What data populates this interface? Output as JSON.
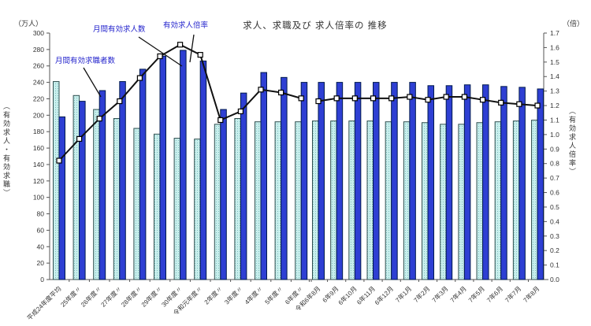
{
  "chart": {
    "title": "求人、求職及び 求人倍率の 推移",
    "left_axis_unit": "（万人）",
    "right_axis_unit": "（倍）",
    "left_axis_title": "（有効求人・有効求職）",
    "right_axis_title": "（有効求人倍率）",
    "legend": {
      "openings": "月間有効求人数",
      "ratio": "有効求人倍率",
      "seekers": "月間有効求職者数"
    }
  },
  "chart_data": {
    "type": "bar+line",
    "title": "求人、求職及び 求人倍率の 推移",
    "left_axis": {
      "unit": "万人",
      "min": 0,
      "max": 300,
      "step": 20
    },
    "right_axis": {
      "unit": "倍",
      "min": 0.0,
      "max": 1.7,
      "step": 0.1
    },
    "series_names": {
      "seekers": "月間有効求職者数",
      "openings": "月間有効求人数",
      "ratio": "有効求人倍率"
    },
    "sections": [
      {
        "name": "annual",
        "categories": [
          "平成24年度平均",
          "25年度〃",
          "26年度〃",
          "27年度〃",
          "28年度〃",
          "29年度〃",
          "30年度〃",
          "令和元年度〃",
          "2年度〃",
          "3年度〃",
          "4年度〃",
          "5年度〃",
          "6年度〃"
        ],
        "seekers": [
          241,
          224,
          207,
          196,
          184,
          177,
          172,
          171,
          189,
          196,
          192,
          192,
          192
        ],
        "openings": [
          198,
          217,
          230,
          241,
          256,
          272,
          279,
          266,
          207,
          227,
          252,
          246,
          240
        ],
        "ratio": [
          0.82,
          0.97,
          1.11,
          1.23,
          1.39,
          1.54,
          1.62,
          1.55,
          1.1,
          1.16,
          1.31,
          1.29,
          1.25
        ]
      },
      {
        "name": "monthly",
        "categories": [
          "令和6年8月",
          "6年9月",
          "6年10月",
          "6年11月",
          "6年12月",
          "7年1月",
          "7年2月",
          "7年3月",
          "7年4月",
          "7年5月",
          "7年6月",
          "7年7月",
          "7年8月"
        ],
        "seekers": [
          193,
          193,
          193,
          193,
          192,
          192,
          191,
          189,
          189,
          191,
          192,
          193,
          194
        ],
        "openings": [
          240,
          240,
          240,
          240,
          240,
          240,
          236,
          236,
          237,
          237,
          235,
          234,
          232
        ],
        "ratio": [
          1.23,
          1.25,
          1.25,
          1.25,
          1.25,
          1.26,
          1.24,
          1.26,
          1.26,
          1.24,
          1.22,
          1.21,
          1.2
        ]
      }
    ],
    "colors": {
      "openings_bar": "#2e3fd3",
      "openings_border": "#001a4d",
      "seekers_bar": "#c7eeec",
      "seekers_dot": "#7fbdbd",
      "seekers_border": "#2f4f4f",
      "ratio_line": "#111111",
      "marker_fill": "#ffffff",
      "annotation_text": "#2222cc",
      "axis_text": "#333333"
    },
    "layout_hints": {
      "legend_position": "annotations-top-left",
      "grid": "off",
      "dual_axis": true,
      "x_labels_rotated": true
    }
  }
}
